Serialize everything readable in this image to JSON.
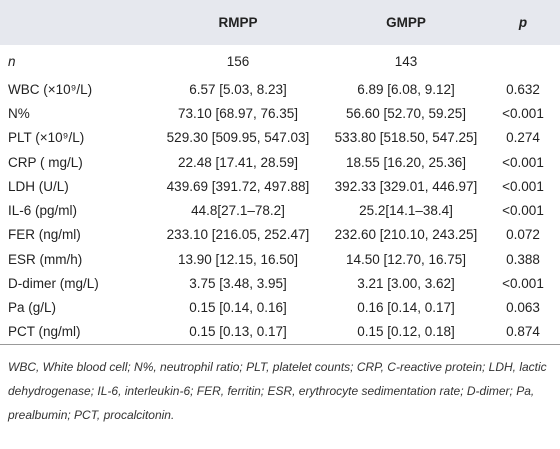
{
  "table": {
    "header": [
      "",
      "RMPP",
      "GMPP",
      "p"
    ],
    "rows": [
      [
        "n",
        "156",
        "143",
        ""
      ],
      [
        "WBC (×10⁹/L)",
        "6.57 [5.03, 8.23]",
        "6.89 [6.08, 9.12]",
        "0.632"
      ],
      [
        "N%",
        "73.10 [68.97, 76.35]",
        "56.60 [52.70, 59.25]",
        "<0.001"
      ],
      [
        "PLT (×10⁹/L)",
        "529.30 [509.95, 547.03]",
        "533.80 [518.50, 547.25]",
        "0.274"
      ],
      [
        "CRP ( mg/L)",
        "22.48 [17.41, 28.59]",
        "18.55 [16.20, 25.36]",
        "<0.001"
      ],
      [
        "LDH (U/L)",
        "439.69 [391.72, 497.88]",
        "392.33 [329.01, 446.97]",
        "<0.001"
      ],
      [
        "IL-6 (pg/ml)",
        "44.8[27.1–78.2]",
        "25.2[14.1–38.4]",
        "<0.001"
      ],
      [
        "FER (ng/ml)",
        "233.10 [216.05, 252.47]",
        "232.60 [210.10, 243.25]",
        "0.072"
      ],
      [
        "ESR (mm/h)",
        "13.90 [12.15, 16.50]",
        "14.50 [12.70, 16.75]",
        "0.388"
      ],
      [
        "D-dimer (mg/L)",
        "3.75 [3.48, 3.95]",
        "3.21 [3.00, 3.62]",
        "<0.001"
      ],
      [
        "Pa (g/L)",
        "0.15 [0.14, 0.16]",
        "0.16 [0.14, 0.17]",
        "0.063"
      ],
      [
        "PCT (ng/ml)",
        "0.15 [0.13, 0.17]",
        "0.15 [0.12, 0.18]",
        "0.874"
      ]
    ]
  },
  "footnote": "WBC, White blood cell; N%, neutrophil ratio; PLT, platelet counts; CRP, C-reactive protein; LDH, lactic dehydrogenase; IL-6, interleukin-6; FER, ferritin; ESR, erythrocyte sedimentation rate; D-dimer; Pa, prealbumin; PCT, procalcitonin."
}
